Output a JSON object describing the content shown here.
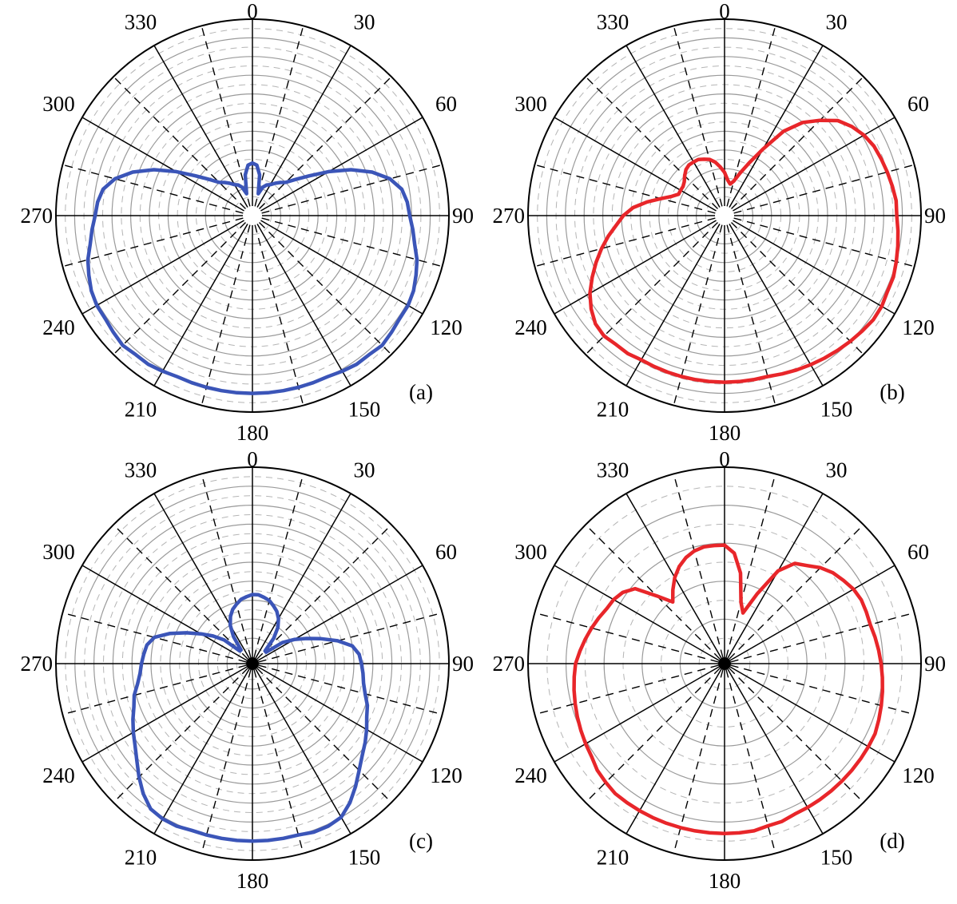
{
  "chart_data": [
    {
      "type": "polar-line",
      "panel_label": "(a)",
      "angle_ticks": [
        "0",
        "30",
        "60",
        "90",
        "120",
        "150",
        "180",
        "210",
        "240",
        "270",
        "300",
        "330"
      ],
      "angle_direction": "clockwise from top",
      "ring_count": 10,
      "grid": true,
      "series": [
        {
          "color": "#3b55b8",
          "theta": [
            0,
            5,
            10,
            15,
            20,
            25,
            30,
            35,
            40,
            45,
            50,
            55,
            60,
            65,
            70,
            75,
            80,
            85,
            90,
            95,
            100,
            105,
            110,
            115,
            120,
            125,
            130,
            135,
            140,
            145,
            150,
            155,
            160,
            165,
            170,
            175,
            180,
            185,
            190,
            195,
            200,
            205,
            210,
            215,
            220,
            225,
            230,
            235,
            240,
            245,
            250,
            255,
            260,
            265,
            270,
            275,
            280,
            285,
            290,
            295,
            300,
            305,
            310,
            315,
            320,
            325,
            330,
            335,
            340,
            345,
            350,
            355
          ],
          "r": [
            0.23,
            0.22,
            0.17,
            0.07,
            0.11,
            0.13,
            0.14,
            0.16,
            0.18,
            0.2,
            0.25,
            0.32,
            0.42,
            0.53,
            0.63,
            0.71,
            0.76,
            0.78,
            0.79,
            0.81,
            0.83,
            0.86,
            0.88,
            0.9,
            0.91,
            0.91,
            0.92,
            0.93,
            0.92,
            0.92,
            0.91,
            0.9,
            0.9,
            0.9,
            0.9,
            0.9,
            0.9,
            0.9,
            0.9,
            0.9,
            0.9,
            0.9,
            0.91,
            0.92,
            0.92,
            0.93,
            0.92,
            0.91,
            0.91,
            0.9,
            0.88,
            0.86,
            0.83,
            0.81,
            0.79,
            0.78,
            0.76,
            0.71,
            0.63,
            0.53,
            0.42,
            0.32,
            0.25,
            0.2,
            0.18,
            0.16,
            0.14,
            0.13,
            0.11,
            0.07,
            0.17,
            0.22
          ]
        }
      ]
    },
    {
      "type": "polar-line",
      "panel_label": "(b)",
      "angle_ticks": [
        "0",
        "30",
        "60",
        "90",
        "120",
        "150",
        "180",
        "210",
        "240",
        "270",
        "300",
        "330"
      ],
      "angle_direction": "clockwise from top",
      "ring_count": 10,
      "grid": true,
      "series": [
        {
          "color": "#e8262a",
          "theta": [
            0,
            5,
            10,
            15,
            20,
            25,
            30,
            35,
            40,
            45,
            50,
            55,
            60,
            65,
            70,
            75,
            80,
            85,
            90,
            95,
            100,
            105,
            110,
            115,
            120,
            125,
            130,
            135,
            140,
            145,
            150,
            155,
            160,
            165,
            170,
            175,
            180,
            185,
            190,
            195,
            200,
            205,
            210,
            215,
            220,
            225,
            230,
            235,
            240,
            245,
            250,
            255,
            260,
            265,
            270,
            275,
            280,
            285,
            290,
            295,
            300,
            305,
            310,
            315,
            320,
            325,
            330,
            335,
            340,
            345,
            350,
            355
          ],
          "r": [
            0.18,
            0.14,
            0.12,
            0.14,
            0.19,
            0.26,
            0.36,
            0.5,
            0.6,
            0.67,
            0.74,
            0.78,
            0.81,
            0.83,
            0.84,
            0.85,
            0.86,
            0.87,
            0.87,
            0.88,
            0.89,
            0.9,
            0.91,
            0.91,
            0.92,
            0.92,
            0.91,
            0.9,
            0.89,
            0.88,
            0.87,
            0.86,
            0.85,
            0.84,
            0.84,
            0.84,
            0.84,
            0.84,
            0.84,
            0.84,
            0.84,
            0.84,
            0.84,
            0.85,
            0.85,
            0.86,
            0.85,
            0.82,
            0.78,
            0.73,
            0.68,
            0.63,
            0.58,
            0.53,
            0.49,
            0.44,
            0.37,
            0.3,
            0.25,
            0.22,
            0.22,
            0.22,
            0.23,
            0.25,
            0.27,
            0.28,
            0.28,
            0.28,
            0.27,
            0.26,
            0.24,
            0.21
          ]
        }
      ]
    },
    {
      "type": "polar-line",
      "panel_label": "(c)",
      "angle_ticks": [
        "0",
        "30",
        "60",
        "90",
        "120",
        "150",
        "180",
        "210",
        "240",
        "270",
        "300",
        "330"
      ],
      "angle_direction": "clockwise from top",
      "ring_count": 10,
      "grid": true,
      "series": [
        {
          "color": "#3b55b8",
          "theta": [
            0,
            5,
            10,
            15,
            20,
            25,
            30,
            35,
            40,
            45,
            50,
            55,
            60,
            65,
            70,
            75,
            80,
            85,
            90,
            95,
            100,
            105,
            110,
            115,
            120,
            125,
            130,
            135,
            140,
            145,
            150,
            155,
            160,
            165,
            170,
            175,
            180,
            185,
            190,
            195,
            200,
            205,
            210,
            215,
            220,
            225,
            230,
            235,
            240,
            245,
            250,
            255,
            260,
            265,
            270,
            275,
            280,
            285,
            290,
            295,
            300,
            305,
            310,
            315,
            320,
            325,
            330,
            335,
            340,
            345,
            350,
            355
          ],
          "r": [
            0.33,
            0.33,
            0.32,
            0.31,
            0.29,
            0.27,
            0.24,
            0.2,
            0.14,
            0.06,
            0.06,
            0.16,
            0.22,
            0.28,
            0.35,
            0.43,
            0.5,
            0.53,
            0.54,
            0.55,
            0.56,
            0.58,
            0.61,
            0.63,
            0.66,
            0.69,
            0.72,
            0.76,
            0.81,
            0.86,
            0.9,
            0.91,
            0.91,
            0.9,
            0.9,
            0.9,
            0.9,
            0.9,
            0.9,
            0.9,
            0.9,
            0.91,
            0.91,
            0.9,
            0.86,
            0.81,
            0.76,
            0.72,
            0.69,
            0.66,
            0.63,
            0.61,
            0.58,
            0.56,
            0.55,
            0.54,
            0.53,
            0.5,
            0.43,
            0.35,
            0.28,
            0.22,
            0.16,
            0.06,
            0.06,
            0.14,
            0.2,
            0.24,
            0.27,
            0.29,
            0.31,
            0.32
          ]
        }
      ]
    },
    {
      "type": "polar-line",
      "panel_label": "(d)",
      "angle_ticks": [
        "0",
        "30",
        "60",
        "90",
        "120",
        "150",
        "180",
        "210",
        "240",
        "270",
        "300",
        "330"
      ],
      "angle_direction": "clockwise from top",
      "ring_count": 5,
      "grid": true,
      "series": [
        {
          "color": "#e8262a",
          "theta": [
            0,
            5,
            10,
            15,
            20,
            25,
            30,
            35,
            40,
            45,
            50,
            55,
            60,
            65,
            70,
            75,
            80,
            85,
            90,
            95,
            100,
            105,
            110,
            115,
            120,
            125,
            130,
            135,
            140,
            145,
            150,
            155,
            160,
            165,
            170,
            175,
            180,
            185,
            190,
            195,
            200,
            205,
            210,
            215,
            220,
            225,
            230,
            235,
            240,
            245,
            250,
            255,
            260,
            265,
            270,
            275,
            280,
            285,
            290,
            295,
            300,
            305,
            310,
            315,
            320,
            325,
            330,
            335,
            340,
            345,
            350,
            355
          ],
          "r": [
            0.59,
            0.55,
            0.45,
            0.3,
            0.25,
            0.37,
            0.53,
            0.61,
            0.64,
            0.68,
            0.71,
            0.73,
            0.75,
            0.76,
            0.76,
            0.76,
            0.77,
            0.78,
            0.79,
            0.8,
            0.81,
            0.82,
            0.83,
            0.84,
            0.84,
            0.84,
            0.84,
            0.84,
            0.84,
            0.84,
            0.84,
            0.84,
            0.85,
            0.85,
            0.86,
            0.86,
            0.86,
            0.86,
            0.86,
            0.86,
            0.86,
            0.86,
            0.86,
            0.86,
            0.86,
            0.85,
            0.84,
            0.82,
            0.81,
            0.8,
            0.79,
            0.78,
            0.77,
            0.76,
            0.75,
            0.73,
            0.71,
            0.69,
            0.67,
            0.65,
            0.64,
            0.62,
            0.58,
            0.47,
            0.39,
            0.44,
            0.49,
            0.53,
            0.56,
            0.58,
            0.59,
            0.59
          ]
        }
      ]
    }
  ]
}
